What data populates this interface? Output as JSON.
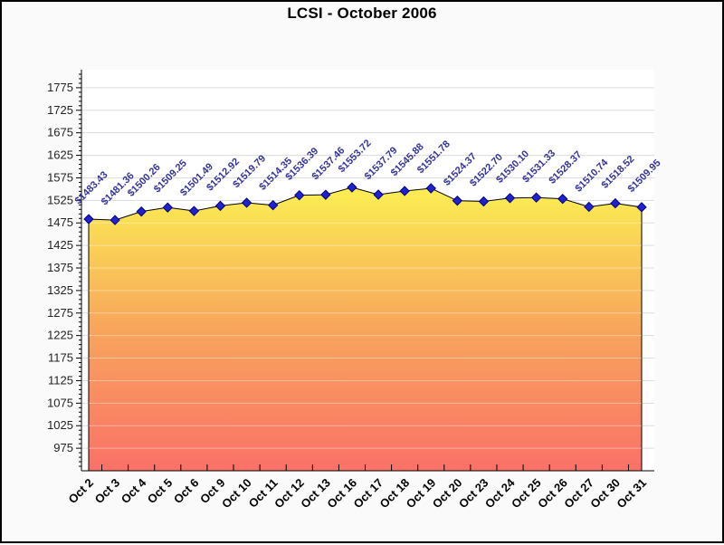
{
  "title": "LCSI - October 2006",
  "chart_data": {
    "type": "area",
    "title": "LCSI - October 2006",
    "xlabel": "",
    "ylabel": "",
    "legend": "none",
    "grid": "horizontal",
    "categories": [
      "Oct 2",
      "Oct 3",
      "Oct 4",
      "Oct 5",
      "Oct 6",
      "Oct 9",
      "Oct 10",
      "Oct 11",
      "Oct 12",
      "Oct 13",
      "Oct 16",
      "Oct 17",
      "Oct 18",
      "Oct 19",
      "Oct 20",
      "Oct 23",
      "Oct 24",
      "Oct 25",
      "Oct 26",
      "Oct 27",
      "Oct 30",
      "Oct 31"
    ],
    "series": [
      {
        "name": "LCSI",
        "values": [
          1483.43,
          1481.36,
          1500.26,
          1509.25,
          1501.49,
          1512.92,
          1519.79,
          1514.35,
          1536.39,
          1537.46,
          1553.72,
          1537.79,
          1545.88,
          1551.78,
          1524.37,
          1522.7,
          1530.1,
          1531.33,
          1528.37,
          1510.74,
          1518.52,
          1509.95
        ],
        "point_labels": [
          "$1483.43",
          "$1481.36",
          "$1500.26",
          "$1509.25",
          "$1501.49",
          "$1512.92",
          "$1519.79",
          "$1514.35",
          "$1536.39",
          "$1537.46",
          "$1553.72",
          "$1537.79",
          "$1545.88",
          "$1551.78",
          "$1524.37",
          "$1522.70",
          "$1530.10",
          "$1531.33",
          "$1528.37",
          "$1510.74",
          "$1518.52",
          "$1509.95"
        ]
      }
    ],
    "ylim": [
      925,
      1815
    ],
    "yticks": [
      975,
      1025,
      1075,
      1125,
      1175,
      1225,
      1275,
      1325,
      1375,
      1425,
      1475,
      1525,
      1575,
      1625,
      1675,
      1725,
      1775
    ],
    "minor_tick_step": 10,
    "colors": {
      "area_gradient_top": "#FBEF52",
      "area_gradient_mid": "#F8A55C",
      "area_gradient_bottom": "#FA7168",
      "line": "#000000",
      "marker_fill": "#2222CC",
      "marker_stroke": "#000080",
      "point_label": "#333399",
      "x_label": "#000000",
      "y_label": "#222222",
      "gridline": "#DCDCDC",
      "axis": "#000000",
      "plot_background": "#FFFFFF",
      "page_background": "#FAFAFA"
    }
  }
}
